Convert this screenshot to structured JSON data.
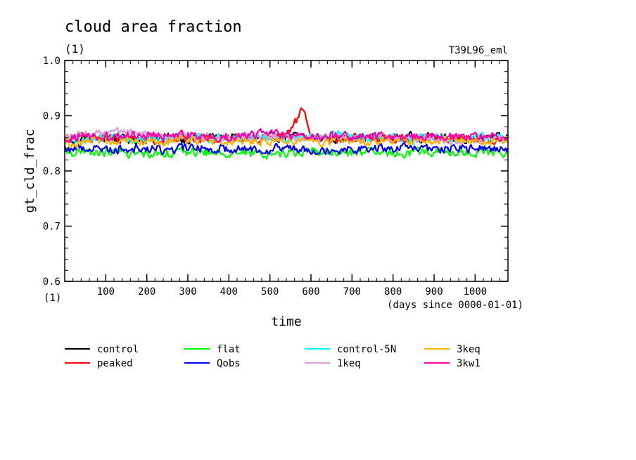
{
  "chart_data": {
    "type": "line",
    "title": "cloud area fraction",
    "units": "(1)",
    "experiment": "T39L96_eml",
    "ylabel": "gt_cld_frac",
    "xlabel": "time",
    "x_units": "(days since 0000-01-01)",
    "x_axis_units": "(1)",
    "xlim": [
      0,
      1080
    ],
    "ylim": [
      0.6,
      1.0
    ],
    "x_ticks": [
      100,
      200,
      300,
      400,
      500,
      600,
      700,
      800,
      900,
      1000
    ],
    "x_tick_labels": [
      "100",
      "200",
      "300",
      "400",
      "500",
      "600",
      "700",
      "800",
      "900",
      "1000"
    ],
    "y_ticks": [
      0.6,
      0.7,
      0.8,
      0.9,
      1.0
    ],
    "y_tick_labels": [
      "0.6",
      "0.7",
      "0.8",
      "0.9",
      "1.0"
    ],
    "grid": false,
    "legend_position": "bottom",
    "series": [
      {
        "name": "control",
        "color": "#000000",
        "x": [
          0,
          60,
          120,
          180,
          240,
          300,
          360,
          420,
          480,
          540,
          600,
          660,
          720,
          780,
          840,
          900,
          960,
          1020,
          1080
        ],
        "y": [
          0.855,
          0.86,
          0.858,
          0.856,
          0.861,
          0.857,
          0.862,
          0.859,
          0.858,
          0.863,
          0.86,
          0.858,
          0.861,
          0.859,
          0.862,
          0.86,
          0.858,
          0.861,
          0.86
        ]
      },
      {
        "name": "peaked",
        "color": "#ff0000",
        "x": [
          0,
          60,
          120,
          180,
          240,
          300,
          360,
          420,
          480,
          540,
          580,
          600,
          660,
          720,
          780,
          840,
          900,
          960,
          1020,
          1080
        ],
        "y": [
          0.858,
          0.862,
          0.857,
          0.86,
          0.855,
          0.861,
          0.858,
          0.862,
          0.857,
          0.864,
          0.91,
          0.86,
          0.858,
          0.861,
          0.859,
          0.857,
          0.861,
          0.859,
          0.857,
          0.86
        ]
      },
      {
        "name": "flat",
        "color": "#00ff00",
        "x": [
          0,
          60,
          120,
          180,
          240,
          300,
          360,
          420,
          480,
          540,
          600,
          660,
          720,
          780,
          840,
          900,
          960,
          1020,
          1080
        ],
        "y": [
          0.835,
          0.832,
          0.834,
          0.831,
          0.833,
          0.835,
          0.832,
          0.834,
          0.83,
          0.833,
          0.836,
          0.832,
          0.834,
          0.831,
          0.833,
          0.835,
          0.832,
          0.834,
          0.833
        ]
      },
      {
        "name": "Qobs",
        "color": "#0000ff",
        "x": [
          0,
          60,
          120,
          180,
          240,
          300,
          360,
          420,
          480,
          540,
          600,
          660,
          720,
          780,
          840,
          900,
          960,
          1020,
          1080
        ],
        "y": [
          0.84,
          0.842,
          0.839,
          0.841,
          0.838,
          0.842,
          0.84,
          0.841,
          0.839,
          0.842,
          0.84,
          0.838,
          0.841,
          0.84,
          0.842,
          0.839,
          0.841,
          0.84,
          0.841
        ]
      },
      {
        "name": "control-5N",
        "color": "#00ffff",
        "x": [
          0,
          60,
          120,
          180,
          240,
          300,
          360,
          420,
          480,
          540,
          600,
          660,
          720,
          780,
          840,
          900,
          960,
          1020,
          1080
        ],
        "y": [
          0.855,
          0.858,
          0.862,
          0.856,
          0.859,
          0.863,
          0.857,
          0.86,
          0.864,
          0.858,
          0.861,
          0.866,
          0.859,
          0.862,
          0.857,
          0.86,
          0.858,
          0.862,
          0.859
        ]
      },
      {
        "name": "1keq",
        "color": "#dda0dd",
        "x": [
          0,
          60,
          120,
          180,
          240,
          300,
          360,
          420,
          480,
          540,
          600,
          660,
          720,
          780,
          840,
          900,
          960,
          1020,
          1080
        ],
        "y": [
          0.86,
          0.864,
          0.87,
          0.866,
          0.862,
          0.865,
          0.861,
          0.863,
          0.86,
          0.862,
          0.859,
          0.861,
          0.858,
          0.86,
          0.857,
          0.859,
          0.856,
          0.858,
          0.857
        ]
      },
      {
        "name": "3keq",
        "color": "#ffb300",
        "x": [
          0,
          60,
          120,
          180,
          240,
          300,
          360,
          420,
          480,
          540,
          600,
          660,
          720,
          780,
          840,
          900,
          960,
          1020,
          1080
        ],
        "y": [
          0.85,
          0.853,
          0.851,
          0.855,
          0.852,
          0.856,
          0.853,
          0.857,
          0.854,
          0.856,
          0.853,
          0.855,
          0.852,
          0.856,
          0.853,
          0.857,
          0.854,
          0.855,
          0.856
        ]
      },
      {
        "name": "3kw1",
        "color": "#ff00aa",
        "x": [
          0,
          60,
          120,
          180,
          240,
          300,
          360,
          420,
          480,
          540,
          600,
          660,
          720,
          780,
          840,
          900,
          960,
          1020,
          1080
        ],
        "y": [
          0.86,
          0.864,
          0.861,
          0.866,
          0.862,
          0.865,
          0.861,
          0.863,
          0.868,
          0.864,
          0.862,
          0.865,
          0.861,
          0.863,
          0.86,
          0.864,
          0.861,
          0.863,
          0.862
        ]
      }
    ]
  }
}
